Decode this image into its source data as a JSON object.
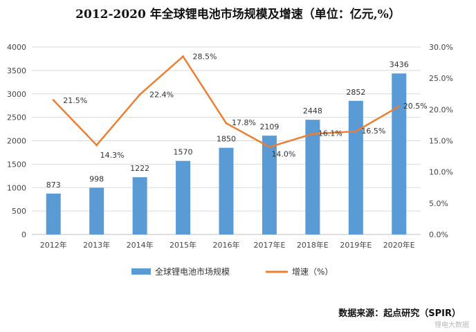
{
  "title": "2012-2020 年全球锂电池市场规模及增速（单位：亿元,%）",
  "source": "数据来源：起点研究（SPIR）",
  "watermark": "锂电大数据",
  "colors": {
    "bar": "#5B9BD5",
    "line": "#ED7D31",
    "grid": "#D9D9D9",
    "axis": "#BFBFBF"
  },
  "chart_data": {
    "type": "bar",
    "categories": [
      "2012年",
      "2013年",
      "2014年",
      "2015年",
      "2016年",
      "2017年E",
      "2018年E",
      "2019年E",
      "2020年E"
    ],
    "series": [
      {
        "name": "全球锂电池市场规模",
        "type": "bar",
        "axis": "left",
        "values": [
          873,
          998,
          1222,
          1570,
          1850,
          2109,
          2448,
          2852,
          3436
        ],
        "labels": [
          "873",
          "998",
          "1222",
          "1570",
          "1850",
          "2109",
          "2448",
          "2852",
          "3436"
        ]
      },
      {
        "name": "增速（%）",
        "type": "line",
        "axis": "right",
        "values": [
          21.5,
          14.3,
          22.4,
          28.5,
          17.8,
          14.0,
          16.1,
          16.5,
          20.5
        ],
        "labels": [
          "21.5%",
          "14.3%",
          "22.4%",
          "28.5%",
          "17.8%",
          "14.0%",
          "16.1%",
          "16.5%",
          "20.5%"
        ]
      }
    ],
    "y_left": {
      "min": 0,
      "max": 4000,
      "ticks": [
        "0",
        "500",
        "1000",
        "1500",
        "2000",
        "2500",
        "3000",
        "3500",
        "4000"
      ]
    },
    "y_right": {
      "min": 0,
      "max": 30,
      "ticks": [
        "0.0%",
        "5.0%",
        "10.0%",
        "15.0%",
        "20.0%",
        "25.0%",
        "30.0%"
      ]
    },
    "grid": true,
    "legend_position": "bottom"
  }
}
